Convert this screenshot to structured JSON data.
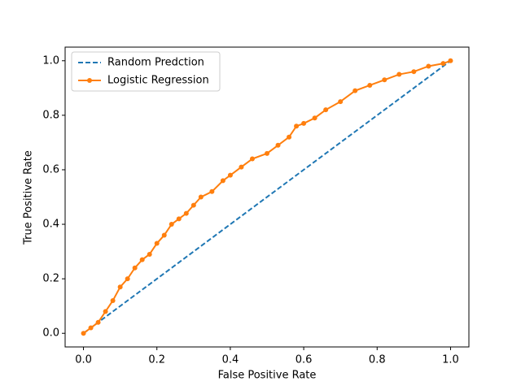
{
  "chart_data": {
    "type": "line",
    "xlabel": "False Positive Rate",
    "ylabel": "True Positive Rate",
    "xlim": [
      -0.05,
      1.05
    ],
    "ylim": [
      -0.05,
      1.05
    ],
    "xticks": [
      {
        "value": 0,
        "label": "0.0"
      },
      0.2,
      0.4,
      0.6,
      0.8,
      {
        "value": 1,
        "label": "1.0"
      }
    ],
    "yticks": [
      {
        "value": 0,
        "label": "0.0"
      },
      0.2,
      0.4,
      0.6,
      0.8,
      {
        "value": 1,
        "label": "1.0"
      }
    ],
    "legend": "upper left",
    "grid": false,
    "series": [
      {
        "name": "Random Predction",
        "color": "#1f77b4",
        "dash": true,
        "marker": false,
        "x": [
          0,
          1
        ],
        "values": [
          0,
          1
        ]
      },
      {
        "name": "Logistic Regression",
        "color": "#ff7f0e",
        "dash": false,
        "marker": true,
        "x": [
          0,
          0.02,
          0.04,
          0.06,
          0.08,
          0.1,
          0.12,
          0.14,
          0.16,
          0.18,
          0.2,
          0.22,
          0.24,
          0.26,
          0.28,
          0.3,
          0.32,
          0.35,
          0.38,
          0.4,
          0.43,
          0.46,
          0.5,
          0.53,
          0.56,
          0.58,
          0.6,
          0.63,
          0.66,
          0.7,
          0.74,
          0.78,
          0.82,
          0.86,
          0.9,
          0.94,
          0.98,
          1
        ],
        "values": [
          0,
          0.02,
          0.04,
          0.08,
          0.12,
          0.17,
          0.2,
          0.24,
          0.27,
          0.29,
          0.33,
          0.36,
          0.4,
          0.42,
          0.44,
          0.47,
          0.5,
          0.52,
          0.56,
          0.58,
          0.61,
          0.64,
          0.66,
          0.69,
          0.72,
          0.76,
          0.77,
          0.79,
          0.82,
          0.85,
          0.89,
          0.91,
          0.93,
          0.95,
          0.96,
          0.98,
          0.99,
          1
        ]
      }
    ]
  }
}
